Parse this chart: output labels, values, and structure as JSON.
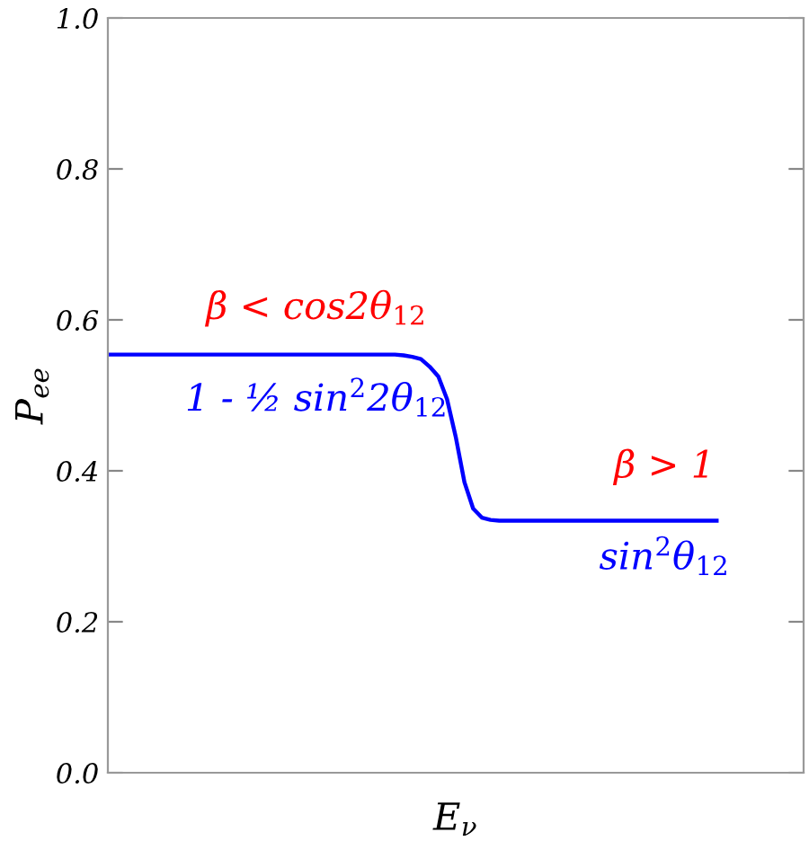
{
  "chart_data": {
    "type": "line",
    "xlabel": "E$_{ν}$",
    "ylabel": "P$_{ee}$",
    "categories": [
      null,
      null,
      null,
      null,
      null,
      null,
      null,
      null,
      null,
      null,
      null,
      null,
      null,
      null,
      null,
      null,
      null,
      null,
      null,
      null,
      null,
      null,
      null,
      null,
      null,
      null,
      null,
      null,
      null,
      null,
      null,
      null,
      null,
      null,
      null,
      null,
      null,
      null,
      null,
      null,
      null,
      null,
      null,
      null,
      null,
      null,
      null,
      null,
      null,
      null,
      null,
      null,
      null,
      null,
      null,
      null,
      null,
      null,
      null,
      null,
      null,
      null,
      null,
      null,
      null,
      null,
      null,
      null,
      null,
      null,
      null
    ],
    "series": [
      {
        "color": "#0000ff",
        "values": [
          0.554,
          0.554,
          0.554,
          0.554,
          0.554,
          0.554,
          0.554,
          0.554,
          0.554,
          0.554,
          0.554,
          0.554,
          0.554,
          0.554,
          0.554,
          0.554,
          0.554,
          0.554,
          0.554,
          0.554,
          0.554,
          0.554,
          0.554,
          0.554,
          0.554,
          0.554,
          0.554,
          0.554,
          0.554,
          0.554,
          0.554,
          0.554,
          0.554,
          0.554,
          0.553,
          0.551,
          0.548,
          0.538,
          0.525,
          0.495,
          0.445,
          0.385,
          0.35,
          0.338,
          0.335,
          0.334,
          0.334,
          0.334,
          0.334,
          0.334,
          0.334,
          0.334,
          0.334,
          0.334,
          0.334,
          0.334,
          0.334,
          0.334,
          0.334,
          0.334,
          0.334,
          0.334,
          0.334,
          0.334,
          0.334,
          0.334,
          0.334,
          0.334,
          0.334,
          0.334,
          0.334
        ]
      }
    ],
    "ylim": [
      0,
      1
    ],
    "yticks": [
      {
        "value": 0,
        "label": "0.0"
      },
      0.2,
      0.4,
      0.6,
      0.8,
      {
        "value": 1,
        "label": "1.0"
      }
    ],
    "tick_labels": "y",
    "grid": false,
    "legend": false,
    "marker": "none",
    "line_style": "solid",
    "annotations": [
      "β < cos2θ$_{12}$",
      "1 - ½ sin$^{2}$2θ$_{12}$",
      "β > 1",
      "sin$^{2}$θ$_{12}$"
    ]
  }
}
